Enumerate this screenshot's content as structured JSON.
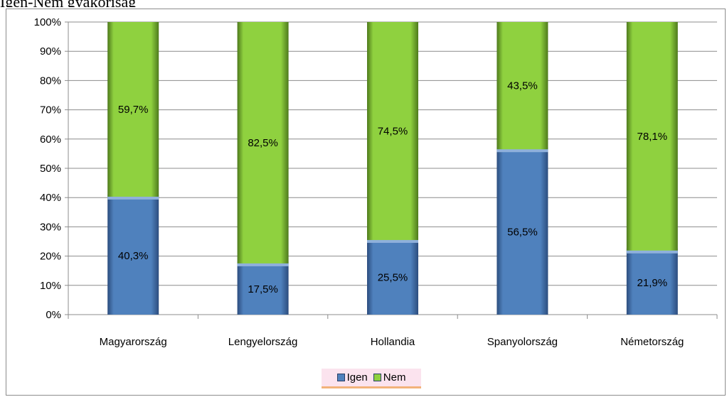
{
  "header_text": "Igen-Nem gyakoriság",
  "chart_data": {
    "type": "bar",
    "stacked": true,
    "percent_stacked": true,
    "categories": [
      "Magyarország",
      "Lengyelország",
      "Hollandia",
      "Spanyolország",
      "Németország"
    ],
    "series": [
      {
        "name": "Igen",
        "color": "#4f81bd",
        "values": [
          40.3,
          17.5,
          25.5,
          56.5,
          21.9
        ],
        "labels": [
          "40,3%",
          "17,5%",
          "25,5%",
          "56,5%",
          "21,9%"
        ]
      },
      {
        "name": "Nem",
        "color": "#8fd13f",
        "values": [
          59.7,
          82.5,
          74.5,
          43.5,
          78.1
        ],
        "labels": [
          "59,7%",
          "82,5%",
          "74,5%",
          "43,5%",
          "78,1%"
        ]
      }
    ],
    "y_ticks": [
      "0%",
      "10%",
      "20%",
      "30%",
      "40%",
      "50%",
      "60%",
      "70%",
      "80%",
      "90%",
      "100%"
    ],
    "ylim": [
      0,
      100
    ],
    "grid": true,
    "legend_position": "bottom"
  }
}
